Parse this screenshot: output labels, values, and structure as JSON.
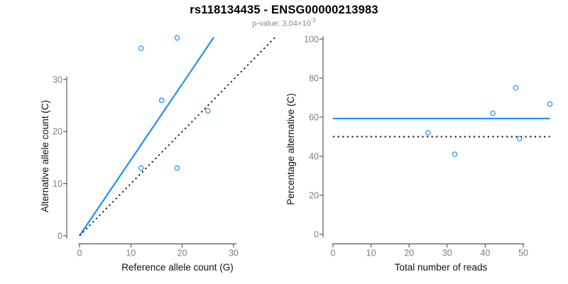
{
  "header": {
    "title": "rs118134435 - ENSG00000213983",
    "subtitle_prefix": "p-value: 3.04×10",
    "subtitle_exponent": "-3"
  },
  "colors": {
    "accent_blue": "#1E90FF",
    "dotted_black": "#151515",
    "axis_line": "#3c3c3c",
    "tick_label": "#7f7f7f",
    "axis_title": "#111111",
    "background": "#ffffff"
  },
  "chart_data": [
    {
      "type": "scatter",
      "panel": "left",
      "xlabel": "Reference allele count (G)",
      "ylabel": "Alternative allele count (C)",
      "xticks": [
        0,
        10,
        20,
        30
      ],
      "yticks": [
        0,
        10,
        20,
        30
      ],
      "xlim": [
        0,
        39
      ],
      "ylim": [
        0,
        39
      ],
      "grid": "off",
      "points": [
        [
          12,
          36
        ],
        [
          19,
          38
        ],
        [
          16,
          26
        ],
        [
          25,
          24
        ],
        [
          12,
          13
        ],
        [
          19,
          13
        ]
      ],
      "lines": [
        {
          "name": "fit-line",
          "x1": 0,
          "y1": 0,
          "x2": 26.15,
          "y2": 38.1,
          "color": "#1E90FF",
          "width": 2.2,
          "dash": ""
        },
        {
          "name": "identity-line",
          "x1": 0,
          "y1": 0,
          "x2": 38.2,
          "y2": 38.2,
          "color": "#151515",
          "width": 1.9,
          "dash": "2.2 4.4"
        }
      ]
    },
    {
      "type": "scatter",
      "panel": "right",
      "xlabel": "Total number of reads",
      "ylabel": "Percentage alternative (C)",
      "xticks": [
        0,
        10,
        20,
        30,
        40,
        50
      ],
      "yticks": [
        0,
        20,
        40,
        60,
        80,
        100
      ],
      "xlim": [
        0,
        59
      ],
      "ylim": [
        0,
        100
      ],
      "grid": "off",
      "points": [
        [
          48,
          75
        ],
        [
          57,
          66.7
        ],
        [
          42,
          62
        ],
        [
          49,
          49
        ],
        [
          25,
          52
        ],
        [
          32,
          41
        ]
      ],
      "lines": [
        {
          "name": "mean-percentage-line",
          "x1": 0,
          "y1": 59.3,
          "x2": 57,
          "y2": 59.3,
          "color": "#1E90FF",
          "width": 2.2,
          "dash": ""
        },
        {
          "name": "null-50-percent-line",
          "x1": 0,
          "y1": 50,
          "x2": 57,
          "y2": 50,
          "color": "#151515",
          "width": 1.9,
          "dash": "2.2 4.4"
        }
      ]
    }
  ]
}
